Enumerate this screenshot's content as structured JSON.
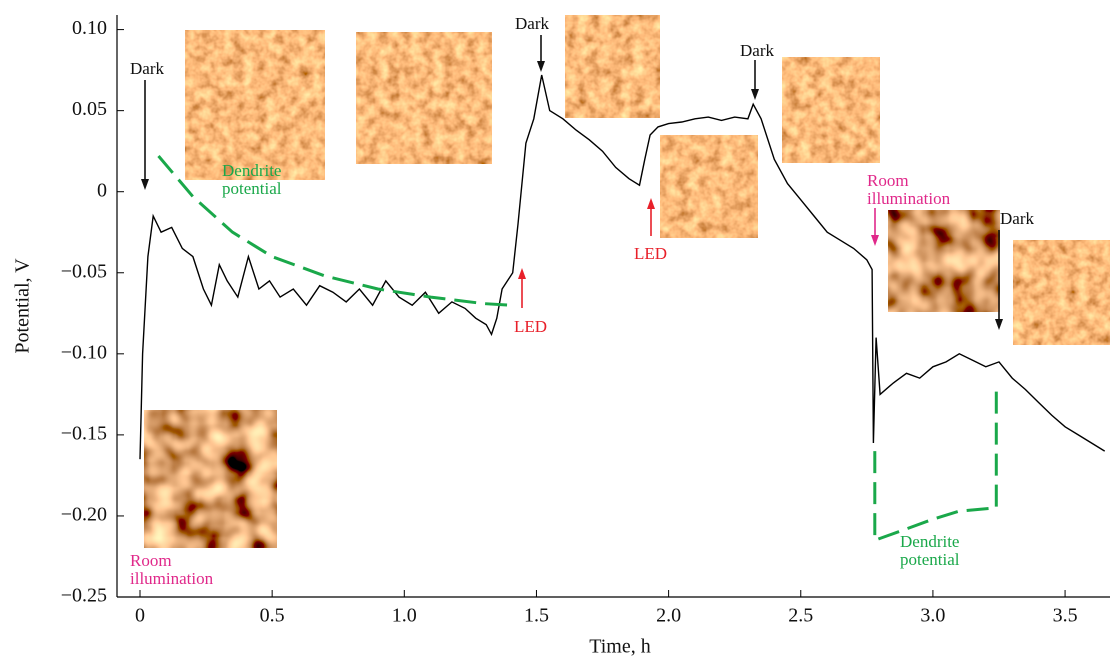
{
  "chart_data": {
    "type": "line",
    "xlabel": "Time, h",
    "ylabel": "Potential, V",
    "xlim": [
      -0.087,
      3.67
    ],
    "ylim": [
      -0.25,
      0.109
    ],
    "xticks": [
      0,
      0.5,
      {
        "value": 1,
        "label": "1.0"
      },
      1.5,
      {
        "value": 2,
        "label": "2.0"
      },
      2.5,
      {
        "value": 3,
        "label": "3.0"
      },
      3.5
    ],
    "yticks": [
      {
        "value": 0.1,
        "label": "0.10"
      },
      0.05,
      0,
      {
        "value": -0.05,
        "label": "−0.05"
      },
      {
        "value": -0.1,
        "label": "−0.10"
      },
      {
        "value": -0.15,
        "label": "−0.15"
      },
      {
        "value": -0.2,
        "label": "−0.20"
      },
      {
        "value": -0.25,
        "label": "−0.25"
      }
    ],
    "series": [
      {
        "color": "#000000",
        "x": [
          0,
          0.01,
          0.03,
          0.05,
          0.08,
          0.12,
          0.16,
          0.2,
          0.24,
          0.27,
          0.3,
          0.33,
          0.37,
          0.41,
          0.45,
          0.49,
          0.53,
          0.58,
          0.63,
          0.68,
          0.73,
          0.78,
          0.83,
          0.88,
          0.93,
          0.98,
          1.03,
          1.08,
          1.13,
          1.18,
          1.23,
          1.27,
          1.31,
          1.33,
          1.35,
          1.37,
          1.39,
          1.41,
          1.43,
          1.46,
          1.49,
          1.52,
          1.55,
          1.6,
          1.65,
          1.7,
          1.75,
          1.8,
          1.85,
          1.89,
          1.91,
          1.93,
          1.96,
          2.0,
          2.05,
          2.1,
          2.15,
          2.2,
          2.25,
          2.3,
          2.32,
          2.35,
          2.4,
          2.45,
          2.5,
          2.55,
          2.6,
          2.65,
          2.7,
          2.75,
          2.77,
          2.775,
          2.785,
          2.8,
          2.85,
          2.9,
          2.95,
          3.0,
          3.05,
          3.1,
          3.15,
          3.2,
          3.25,
          3.3,
          3.35,
          3.4,
          3.45,
          3.5,
          3.55,
          3.6,
          3.65
        ],
        "values": [
          -0.165,
          -0.1,
          -0.04,
          -0.015,
          -0.025,
          -0.022,
          -0.035,
          -0.04,
          -0.06,
          -0.07,
          -0.045,
          -0.055,
          -0.065,
          -0.04,
          -0.06,
          -0.055,
          -0.065,
          -0.06,
          -0.07,
          -0.058,
          -0.062,
          -0.068,
          -0.06,
          -0.07,
          -0.055,
          -0.065,
          -0.07,
          -0.062,
          -0.075,
          -0.068,
          -0.072,
          -0.078,
          -0.082,
          -0.088,
          -0.078,
          -0.06,
          -0.055,
          -0.05,
          -0.02,
          0.03,
          0.045,
          0.072,
          0.05,
          0.045,
          0.038,
          0.032,
          0.025,
          0.015,
          0.008,
          0.004,
          0.02,
          0.035,
          0.04,
          0.042,
          0.043,
          0.045,
          0.046,
          0.044,
          0.046,
          0.045,
          0.054,
          0.045,
          0.02,
          0.005,
          -0.005,
          -0.015,
          -0.025,
          -0.03,
          -0.035,
          -0.042,
          -0.048,
          -0.155,
          -0.09,
          -0.125,
          -0.118,
          -0.112,
          -0.115,
          -0.108,
          -0.105,
          -0.1,
          -0.104,
          -0.108,
          -0.105,
          -0.115,
          -0.122,
          -0.13,
          -0.138,
          -0.145,
          -0.15,
          -0.155,
          -0.16
        ]
      },
      {
        "color": "#1aa84a",
        "dashed": true,
        "x": [
          0.07,
          0.2,
          0.35,
          0.5,
          0.7,
          0.9,
          1.1,
          1.3,
          1.4
        ],
        "values": [
          0.022,
          -0.003,
          -0.025,
          -0.04,
          -0.052,
          -0.06,
          -0.065,
          -0.069,
          -0.07
        ]
      },
      {
        "color": "#1aa84a",
        "dashed": true,
        "x": [
          2.78,
          2.78,
          2.9,
          3.0,
          3.1,
          3.24,
          3.24
        ],
        "values": [
          -0.16,
          -0.215,
          -0.208,
          -0.202,
          -0.197,
          -0.195,
          -0.118
        ]
      }
    ],
    "annotations": [
      {
        "text": "Dark",
        "color": "#111111"
      },
      {
        "text": "Dark",
        "color": "#111111"
      },
      {
        "text": "Dark",
        "color": "#111111"
      },
      {
        "text": "Dark",
        "color": "#111111"
      },
      {
        "text": "LED",
        "color": "#e8202a"
      },
      {
        "text": "LED",
        "color": "#e8202a"
      },
      {
        "text": "Room illumination",
        "color": "#e0288a"
      },
      {
        "text": "Room illumination",
        "color": "#e0288a"
      },
      {
        "text": "Dendrite potential",
        "color": "#1aa84a"
      },
      {
        "text": "Dendrite potential",
        "color": "#1aa84a"
      }
    ]
  }
}
